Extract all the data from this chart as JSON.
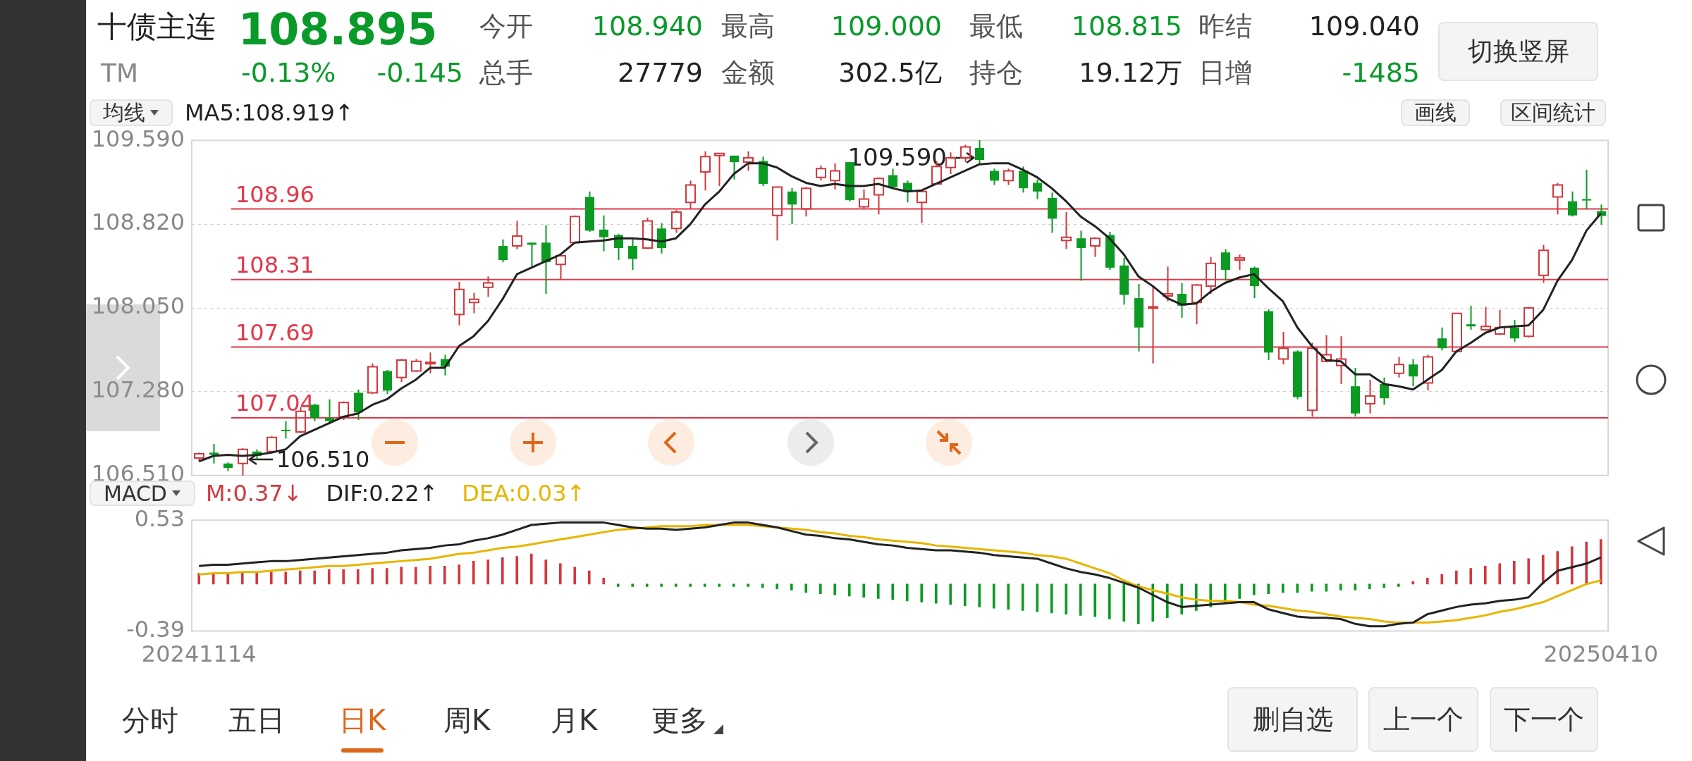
{
  "chart_data": [
    {
      "type": "candlestick",
      "title": "十债主连",
      "annotations": [
        "108.895",
        "TM",
        "-0.13%",
        "-0.145",
        "今开",
        "108.940",
        "最高",
        "109.000",
        "最低",
        "108.815",
        "昨结",
        "109.040",
        "总手",
        "27779",
        "金额",
        "302.5亿",
        "持仓",
        "19.12万",
        "日增",
        "-1485",
        "切换竖屏",
        "均线",
        "画线",
        "区间统计",
        "109.590",
        "106.510"
      ],
      "categories": [
        "20241114",
        null,
        null,
        null,
        null,
        null,
        null,
        null,
        null,
        null,
        null,
        null,
        null,
        null,
        null,
        null,
        null,
        null,
        null,
        null,
        null,
        null,
        null,
        null,
        null,
        null,
        null,
        null,
        null,
        null,
        null,
        null,
        null,
        null,
        null,
        null,
        null,
        null,
        null,
        null,
        null,
        null,
        null,
        null,
        null,
        null,
        null,
        null,
        null,
        null,
        null,
        null,
        null,
        null,
        null,
        null,
        null,
        null,
        null,
        null,
        null,
        null,
        null,
        null,
        null,
        null,
        null,
        null,
        null,
        null,
        null,
        null,
        null,
        null,
        null,
        null,
        null,
        null,
        null,
        null,
        null,
        null,
        null,
        null,
        null,
        null,
        null,
        null,
        null,
        null,
        null,
        null,
        null,
        null,
        null,
        null,
        null,
        "20250410"
      ],
      "ohlc": [
        [
          106.67,
          106.72,
          106.64,
          106.71
        ],
        [
          106.72,
          106.8,
          106.62,
          106.7
        ],
        [
          106.62,
          106.63,
          106.55,
          106.58
        ],
        [
          106.62,
          106.76,
          106.51,
          106.75
        ],
        [
          106.73,
          106.75,
          106.66,
          106.69
        ],
        [
          106.73,
          106.87,
          106.72,
          106.86
        ],
        [
          106.93,
          107.01,
          106.85,
          106.92
        ],
        [
          106.91,
          107.14,
          106.9,
          107.1
        ],
        [
          107.16,
          107.17,
          107.01,
          107.04
        ],
        [
          107.04,
          107.21,
          106.98,
          107.01
        ],
        [
          107.05,
          107.19,
          107.02,
          107.18
        ],
        [
          107.27,
          107.3,
          107.02,
          107.09
        ],
        [
          107.27,
          107.54,
          107.26,
          107.51
        ],
        [
          107.47,
          107.48,
          107.26,
          107.29
        ],
        [
          107.41,
          107.58,
          107.37,
          107.57
        ],
        [
          107.47,
          107.58,
          107.46,
          107.56
        ],
        [
          107.54,
          107.64,
          107.45,
          107.55
        ],
        [
          107.58,
          107.62,
          107.43,
          107.51
        ],
        [
          107.99,
          108.29,
          107.89,
          108.22
        ],
        [
          108.1,
          108.19,
          108.0,
          108.13
        ],
        [
          108.24,
          108.34,
          108.15,
          108.28
        ],
        [
          108.62,
          108.68,
          108.47,
          108.49
        ],
        [
          108.62,
          108.85,
          108.59,
          108.71
        ],
        [
          108.65,
          108.65,
          108.42,
          108.63
        ],
        [
          108.65,
          108.81,
          108.18,
          108.47
        ],
        [
          108.45,
          108.55,
          108.31,
          108.53
        ],
        [
          108.65,
          108.9,
          108.65,
          108.89
        ],
        [
          109.07,
          109.12,
          108.75,
          108.76
        ],
        [
          108.77,
          108.9,
          108.57,
          108.7
        ],
        [
          108.72,
          108.73,
          108.49,
          108.6
        ],
        [
          108.62,
          108.69,
          108.4,
          108.5
        ],
        [
          108.6,
          108.88,
          108.59,
          108.85
        ],
        [
          108.78,
          108.83,
          108.55,
          108.6
        ],
        [
          108.78,
          108.95,
          108.74,
          108.93
        ],
        [
          109.02,
          109.22,
          108.96,
          109.18
        ],
        [
          109.3,
          109.49,
          109.13,
          109.44
        ],
        [
          109.45,
          109.47,
          109.17,
          109.47
        ],
        [
          109.45,
          109.45,
          109.23,
          109.39
        ],
        [
          109.39,
          109.49,
          109.31,
          109.43
        ],
        [
          109.4,
          109.44,
          109.17,
          109.19
        ],
        [
          108.9,
          109.16,
          108.67,
          109.16
        ],
        [
          109.12,
          109.15,
          108.82,
          109.0
        ],
        [
          108.96,
          109.16,
          108.89,
          109.15
        ],
        [
          109.25,
          109.36,
          109.22,
          109.33
        ],
        [
          109.22,
          109.38,
          109.14,
          109.31
        ],
        [
          109.39,
          109.39,
          109.03,
          109.04
        ],
        [
          108.98,
          109.14,
          108.96,
          109.05
        ],
        [
          109.09,
          109.25,
          108.91,
          109.24
        ],
        [
          109.27,
          109.33,
          109.14,
          109.16
        ],
        [
          109.2,
          109.22,
          109.02,
          109.13
        ],
        [
          109.02,
          109.13,
          108.83,
          109.12
        ],
        [
          109.19,
          109.4,
          109.19,
          109.35
        ],
        [
          109.34,
          109.48,
          109.28,
          109.43
        ],
        [
          109.43,
          109.55,
          109.39,
          109.53
        ],
        [
          109.52,
          109.59,
          109.37,
          109.41
        ],
        [
          109.31,
          109.33,
          109.18,
          109.22
        ],
        [
          109.22,
          109.33,
          109.18,
          109.31
        ],
        [
          109.31,
          109.35,
          109.11,
          109.15
        ],
        [
          109.2,
          109.23,
          109.05,
          109.12
        ],
        [
          109.06,
          109.11,
          108.74,
          108.87
        ],
        [
          108.67,
          108.93,
          108.59,
          108.7
        ],
        [
          108.69,
          108.76,
          108.3,
          108.6
        ],
        [
          108.62,
          108.7,
          108.52,
          108.69
        ],
        [
          108.72,
          108.75,
          108.4,
          108.42
        ],
        [
          108.44,
          108.51,
          108.08,
          108.17
        ],
        [
          108.14,
          108.27,
          107.65,
          107.87
        ],
        [
          108.05,
          108.25,
          107.54,
          108.06
        ],
        [
          108.16,
          108.43,
          108.11,
          108.18
        ],
        [
          108.18,
          108.28,
          107.96,
          108.07
        ],
        [
          108.1,
          108.27,
          107.9,
          108.26
        ],
        [
          108.25,
          108.52,
          108.18,
          108.46
        ],
        [
          108.56,
          108.59,
          108.3,
          108.4
        ],
        [
          108.49,
          108.54,
          108.4,
          108.51
        ],
        [
          108.42,
          108.43,
          108.14,
          108.25
        ],
        [
          108.02,
          108.04,
          107.57,
          107.64
        ],
        [
          107.58,
          107.83,
          107.53,
          107.68
        ],
        [
          107.65,
          107.66,
          107.21,
          107.23
        ],
        [
          107.11,
          107.73,
          107.05,
          107.68
        ],
        [
          107.56,
          107.8,
          107.55,
          107.62
        ],
        [
          107.52,
          107.79,
          107.35,
          107.58
        ],
        [
          107.33,
          107.5,
          107.05,
          107.08
        ],
        [
          107.17,
          107.39,
          107.08,
          107.24
        ],
        [
          107.35,
          107.41,
          107.16,
          107.22
        ],
        [
          107.45,
          107.6,
          107.41,
          107.53
        ],
        [
          107.53,
          107.58,
          107.33,
          107.42
        ],
        [
          107.36,
          107.62,
          107.29,
          107.6
        ],
        [
          107.77,
          107.87,
          107.66,
          107.68
        ],
        [
          107.65,
          108.0,
          107.64,
          108.0
        ],
        [
          107.9,
          108.07,
          107.85,
          107.88
        ],
        [
          107.85,
          108.06,
          107.84,
          107.88
        ],
        [
          107.81,
          108.03,
          107.8,
          107.87
        ],
        [
          107.87,
          107.94,
          107.74,
          107.77
        ],
        [
          107.79,
          108.06,
          107.78,
          108.05
        ],
        [
          108.35,
          108.63,
          108.28,
          108.58
        ],
        [
          109.07,
          109.2,
          108.91,
          109.18
        ],
        [
          109.03,
          109.12,
          108.89,
          108.9
        ],
        [
          109.05,
          109.32,
          108.96,
          109.04
        ],
        [
          108.94,
          109.0,
          108.815,
          108.895
        ]
      ],
      "colors": [
        "#d0393e",
        "#0b9b22",
        "#0b9b22",
        "#d0393e",
        "#0b9b22",
        "#d0393e",
        "#0b9b22",
        "#d0393e",
        "#0b9b22",
        "#0b9b22",
        "#d0393e",
        "#0b9b22",
        "#d0393e",
        "#0b9b22",
        "#d0393e",
        "#d0393e",
        "#d0393e",
        "#0b9b22",
        "#d0393e",
        "#d0393e",
        "#d0393e",
        "#0b9b22",
        "#d0393e",
        "#0b9b22",
        "#0b9b22",
        "#d0393e",
        "#d0393e",
        "#0b9b22",
        "#0b9b22",
        "#0b9b22",
        "#0b9b22",
        "#d0393e",
        "#0b9b22",
        "#d0393e",
        "#d0393e",
        "#d0393e",
        "#d0393e",
        "#0b9b22",
        "#d0393e",
        "#0b9b22",
        "#d0393e",
        "#0b9b22",
        "#d0393e",
        "#d0393e",
        "#d0393e",
        "#0b9b22",
        "#d0393e",
        "#d0393e",
        "#0b9b22",
        "#0b9b22",
        "#d0393e",
        "#d0393e",
        "#d0393e",
        "#d0393e",
        "#0b9b22",
        "#0b9b22",
        "#d0393e",
        "#0b9b22",
        "#0b9b22",
        "#0b9b22",
        "#d0393e",
        "#0b9b22",
        "#d0393e",
        "#0b9b22",
        "#0b9b22",
        "#0b9b22",
        "#d0393e",
        "#d0393e",
        "#0b9b22",
        "#d0393e",
        "#d0393e",
        "#0b9b22",
        "#d0393e",
        "#0b9b22",
        "#0b9b22",
        "#d0393e",
        "#0b9b22",
        "#d0393e",
        "#d0393e",
        "#d0393e",
        "#0b9b22",
        "#d0393e",
        "#0b9b22",
        "#d0393e",
        "#0b9b22",
        "#d0393e",
        "#0b9b22",
        "#d0393e",
        "#0b9b22",
        "#d0393e",
        "#d0393e",
        "#0b9b22",
        "#d0393e",
        "#d0393e",
        "#d0393e",
        "#0b9b22",
        "#0b9b22",
        "#0b9b22"
      ],
      "series": [
        {
          "name": "MA5:108.919↑",
          "type": "line",
          "color": "#222222",
          "values": [
            106.64,
            106.69,
            106.7,
            106.69,
            106.7,
            106.72,
            106.75,
            106.87,
            106.93,
            106.99,
            107.05,
            107.08,
            107.16,
            107.21,
            107.31,
            107.39,
            107.5,
            107.5,
            107.7,
            107.79,
            107.93,
            108.13,
            108.36,
            108.42,
            108.48,
            108.54,
            108.65,
            108.66,
            108.67,
            108.69,
            108.69,
            108.68,
            108.66,
            108.69,
            108.82,
            109.0,
            109.12,
            109.28,
            109.38,
            109.38,
            109.34,
            109.26,
            109.2,
            109.17,
            109.19,
            109.17,
            109.17,
            109.19,
            109.15,
            109.12,
            109.13,
            109.19,
            109.25,
            109.31,
            109.37,
            109.38,
            109.38,
            109.32,
            109.25,
            109.15,
            109.03,
            108.89,
            108.8,
            108.69,
            108.54,
            108.34,
            108.25,
            108.14,
            108.08,
            108.09,
            108.2,
            108.28,
            108.33,
            108.36,
            108.23,
            108.11,
            107.87,
            107.7,
            107.57,
            107.56,
            107.44,
            107.44,
            107.35,
            107.33,
            107.3,
            107.39,
            107.48,
            107.65,
            107.73,
            107.82,
            107.87,
            107.88,
            107.89,
            108.03,
            108.3,
            108.49,
            108.76,
            108.919
          ]
        }
      ],
      "ylim": [
        106.51,
        109.59
      ],
      "yticks": [
        {
          "value": 106.51,
          "label": "106.510"
        },
        {
          "value": 107.28,
          "label": "107.280"
        },
        {
          "value": 108.05,
          "label": "108.050"
        },
        {
          "value": 108.82,
          "label": "108.820"
        },
        {
          "value": 109.59,
          "label": "109.590"
        }
      ],
      "grid": "y",
      "legend": "top left",
      "tick_labels": "y",
      "ref_lines": [
        {
          "axis": "y",
          "value": 108.96,
          "label": "108.96",
          "color": "#e0394a"
        },
        {
          "axis": "y",
          "value": 108.31,
          "label": "108.31",
          "color": "#e0394a"
        },
        {
          "axis": "y",
          "value": 107.69,
          "label": "107.69",
          "color": "#e0394a"
        },
        {
          "axis": "y",
          "value": 107.04,
          "label": "107.04",
          "color": "#e0394a"
        }
      ]
    },
    {
      "type": "line",
      "title": "MACD",
      "annotations": [
        "分时",
        "五日",
        "日K",
        "周K",
        "月K",
        "更多",
        "删自选",
        "上一个",
        "下一个"
      ],
      "categories": [
        "20241114",
        null,
        null,
        null,
        null,
        null,
        null,
        null,
        null,
        null,
        null,
        null,
        null,
        null,
        null,
        null,
        null,
        null,
        null,
        null,
        null,
        null,
        null,
        null,
        null,
        null,
        null,
        null,
        null,
        null,
        null,
        null,
        null,
        null,
        null,
        null,
        null,
        null,
        null,
        null,
        null,
        null,
        null,
        null,
        null,
        null,
        null,
        null,
        null,
        null,
        null,
        null,
        null,
        null,
        null,
        null,
        null,
        null,
        null,
        null,
        null,
        null,
        null,
        null,
        null,
        null,
        null,
        null,
        null,
        null,
        null,
        null,
        null,
        null,
        null,
        null,
        null,
        null,
        null,
        null,
        null,
        null,
        null,
        null,
        null,
        null,
        null,
        null,
        null,
        null,
        null,
        null,
        null,
        null,
        null,
        null,
        null,
        "20250410"
      ],
      "series": [
        {
          "name": "M:0.37↓",
          "type": "bar",
          "values": [
            0.09,
            0.09,
            0.09,
            0.1,
            0.1,
            0.1,
            0.1,
            0.11,
            0.11,
            0.12,
            0.12,
            0.12,
            0.13,
            0.13,
            0.14,
            0.14,
            0.15,
            0.15,
            0.16,
            0.19,
            0.2,
            0.22,
            0.23,
            0.25,
            0.2,
            0.17,
            0.14,
            0.11,
            0.05,
            -0.02,
            -0.02,
            -0.02,
            -0.02,
            -0.02,
            -0.02,
            -0.02,
            -0.02,
            -0.02,
            -0.02,
            -0.03,
            -0.04,
            -0.05,
            -0.07,
            -0.08,
            -0.09,
            -0.1,
            -0.11,
            -0.12,
            -0.13,
            -0.14,
            -0.15,
            -0.16,
            -0.17,
            -0.18,
            -0.19,
            -0.2,
            -0.21,
            -0.22,
            -0.23,
            -0.24,
            -0.25,
            -0.26,
            -0.27,
            -0.29,
            -0.31,
            -0.33,
            -0.31,
            -0.28,
            -0.25,
            -0.22,
            -0.19,
            -0.16,
            -0.12,
            -0.09,
            -0.08,
            -0.07,
            -0.07,
            -0.06,
            -0.06,
            -0.05,
            -0.05,
            -0.04,
            -0.03,
            -0.02,
            0.02,
            0.05,
            0.08,
            0.11,
            0.13,
            0.15,
            0.17,
            0.19,
            0.21,
            0.24,
            0.27,
            0.31,
            0.35,
            0.37
          ],
          "colors": [
            "#d0393e",
            "#d0393e",
            "#d0393e",
            "#d0393e",
            "#d0393e",
            "#d0393e",
            "#d0393e",
            "#d0393e",
            "#d0393e",
            "#d0393e",
            "#d0393e",
            "#d0393e",
            "#d0393e",
            "#d0393e",
            "#d0393e",
            "#d0393e",
            "#d0393e",
            "#d0393e",
            "#d0393e",
            "#d0393e",
            "#d0393e",
            "#d0393e",
            "#d0393e",
            "#d0393e",
            "#d0393e",
            "#d0393e",
            "#d0393e",
            "#d0393e",
            "#d0393e",
            "#0b9b22",
            "#0b9b22",
            "#0b9b22",
            "#0b9b22",
            "#0b9b22",
            "#0b9b22",
            "#0b9b22",
            "#0b9b22",
            "#0b9b22",
            "#0b9b22",
            "#0b9b22",
            "#0b9b22",
            "#0b9b22",
            "#0b9b22",
            "#0b9b22",
            "#0b9b22",
            "#0b9b22",
            "#0b9b22",
            "#0b9b22",
            "#0b9b22",
            "#0b9b22",
            "#0b9b22",
            "#0b9b22",
            "#0b9b22",
            "#0b9b22",
            "#0b9b22",
            "#0b9b22",
            "#0b9b22",
            "#0b9b22",
            "#0b9b22",
            "#0b9b22",
            "#0b9b22",
            "#0b9b22",
            "#0b9b22",
            "#0b9b22",
            "#0b9b22",
            "#0b9b22",
            "#0b9b22",
            "#0b9b22",
            "#0b9b22",
            "#0b9b22",
            "#0b9b22",
            "#0b9b22",
            "#0b9b22",
            "#0b9b22",
            "#0b9b22",
            "#0b9b22",
            "#0b9b22",
            "#0b9b22",
            "#0b9b22",
            "#0b9b22",
            "#0b9b22",
            "#0b9b22",
            "#0b9b22",
            "#0b9b22",
            "#d0393e",
            "#d0393e",
            "#d0393e",
            "#d0393e",
            "#d0393e",
            "#d0393e",
            "#d0393e",
            "#d0393e",
            "#d0393e",
            "#d0393e",
            "#d0393e",
            "#d0393e",
            "#d0393e",
            "#d0393e"
          ]
        },
        {
          "name": "DIF:0.22↑",
          "type": "line",
          "color": "#222222",
          "values": [
            0.15,
            0.16,
            0.16,
            0.17,
            0.18,
            0.19,
            0.19,
            0.2,
            0.21,
            0.22,
            0.23,
            0.24,
            0.25,
            0.26,
            0.28,
            0.29,
            0.3,
            0.32,
            0.33,
            0.36,
            0.38,
            0.41,
            0.45,
            0.49,
            0.5,
            0.51,
            0.51,
            0.51,
            0.51,
            0.49,
            0.47,
            0.46,
            0.46,
            0.45,
            0.46,
            0.47,
            0.49,
            0.51,
            0.51,
            0.49,
            0.47,
            0.44,
            0.41,
            0.4,
            0.38,
            0.37,
            0.35,
            0.33,
            0.32,
            0.3,
            0.29,
            0.28,
            0.28,
            0.27,
            0.26,
            0.24,
            0.23,
            0.22,
            0.21,
            0.17,
            0.13,
            0.1,
            0.08,
            0.05,
            0.01,
            -0.03,
            -0.09,
            -0.15,
            -0.19,
            -0.18,
            -0.17,
            -0.16,
            -0.15,
            -0.15,
            -0.21,
            -0.24,
            -0.27,
            -0.28,
            -0.28,
            -0.29,
            -0.33,
            -0.35,
            -0.35,
            -0.33,
            -0.32,
            -0.25,
            -0.22,
            -0.19,
            -0.17,
            -0.16,
            -0.14,
            -0.13,
            -0.11,
            0.01,
            0.11,
            0.14,
            0.17,
            0.22
          ]
        },
        {
          "name": "DEA:0.03↑",
          "type": "line",
          "color": "#e8b500",
          "values": [
            0.08,
            0.09,
            0.09,
            0.1,
            0.1,
            0.11,
            0.12,
            0.13,
            0.14,
            0.15,
            0.15,
            0.16,
            0.17,
            0.18,
            0.19,
            0.2,
            0.21,
            0.23,
            0.25,
            0.26,
            0.28,
            0.3,
            0.31,
            0.33,
            0.35,
            0.37,
            0.39,
            0.41,
            0.43,
            0.45,
            0.46,
            0.47,
            0.48,
            0.48,
            0.48,
            0.49,
            0.49,
            0.49,
            0.49,
            0.48,
            0.47,
            0.46,
            0.45,
            0.43,
            0.42,
            0.4,
            0.39,
            0.37,
            0.36,
            0.35,
            0.34,
            0.32,
            0.31,
            0.3,
            0.29,
            0.28,
            0.27,
            0.26,
            0.24,
            0.23,
            0.21,
            0.17,
            0.13,
            0.09,
            0.03,
            -0.02,
            -0.05,
            -0.08,
            -0.11,
            -0.13,
            -0.14,
            -0.14,
            -0.15,
            -0.17,
            -0.18,
            -0.2,
            -0.22,
            -0.23,
            -0.25,
            -0.27,
            -0.28,
            -0.29,
            -0.31,
            -0.32,
            -0.32,
            -0.32,
            -0.31,
            -0.3,
            -0.28,
            -0.26,
            -0.23,
            -0.21,
            -0.18,
            -0.15,
            -0.1,
            -0.05,
            0,
            0.03
          ]
        }
      ],
      "ylim": [
        -0.39,
        0.53
      ],
      "yticks": [
        -0.39,
        0.53
      ],
      "legend": "top left"
    }
  ]
}
